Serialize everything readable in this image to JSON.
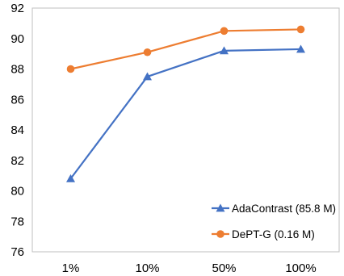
{
  "chart_data": {
    "type": "line",
    "title": "",
    "xlabel": "",
    "ylabel": "",
    "categories": [
      "1%",
      "10%",
      "50%",
      "100%"
    ],
    "ylim": [
      76,
      92
    ],
    "yticks": [
      76,
      78,
      80,
      82,
      84,
      86,
      88,
      90,
      92
    ],
    "grid": false,
    "legend_position": "bottom-right",
    "series": [
      {
        "name": "AdaContrast (85.8 M)",
        "values": [
          80.8,
          87.5,
          89.2,
          89.3
        ],
        "color": "#4472C4",
        "marker": "triangle"
      },
      {
        "name": "DePT-G (0.16 M)",
        "values": [
          88.0,
          89.1,
          90.5,
          90.6
        ],
        "color": "#ED7D31",
        "marker": "circle"
      }
    ]
  }
}
